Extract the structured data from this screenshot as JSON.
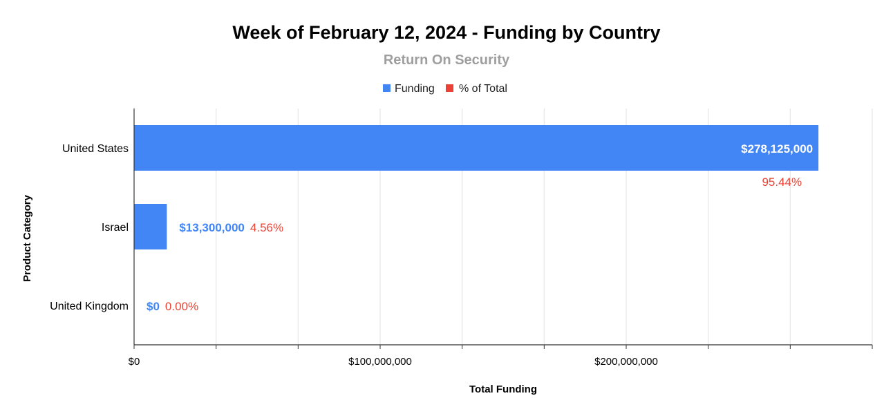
{
  "chart_data": {
    "type": "bar",
    "orientation": "horizontal",
    "title": "Week of February 12, 2024 - Funding by Country",
    "subtitle": "Return On Security",
    "xlabel": "Total Funding",
    "ylabel": "Product Category",
    "categories": [
      "United States",
      "Israel",
      "United Kingdom"
    ],
    "series": [
      {
        "name": "Funding",
        "color": "#4285f4",
        "values": [
          278125000,
          13300000,
          0
        ],
        "data_labels": [
          "$278,125,000",
          "$13,300,000",
          "$0"
        ]
      },
      {
        "name": "% of Total",
        "color": "#ea4335",
        "values": [
          95.44,
          4.56,
          0.0
        ],
        "data_labels": [
          "95.44%",
          "4.56%",
          "0.00%"
        ]
      }
    ],
    "xlim": [
      0,
      300000000
    ],
    "xticks": [
      0,
      100000000,
      200000000
    ],
    "xtick_labels": [
      "$0",
      "$100,000,000",
      "$200,000,000"
    ],
    "minor_gridlines": [
      33333333,
      66666667,
      133333333,
      166666667,
      233333333,
      266666667,
      300000000
    ],
    "grid": true,
    "legend_position": "top"
  }
}
